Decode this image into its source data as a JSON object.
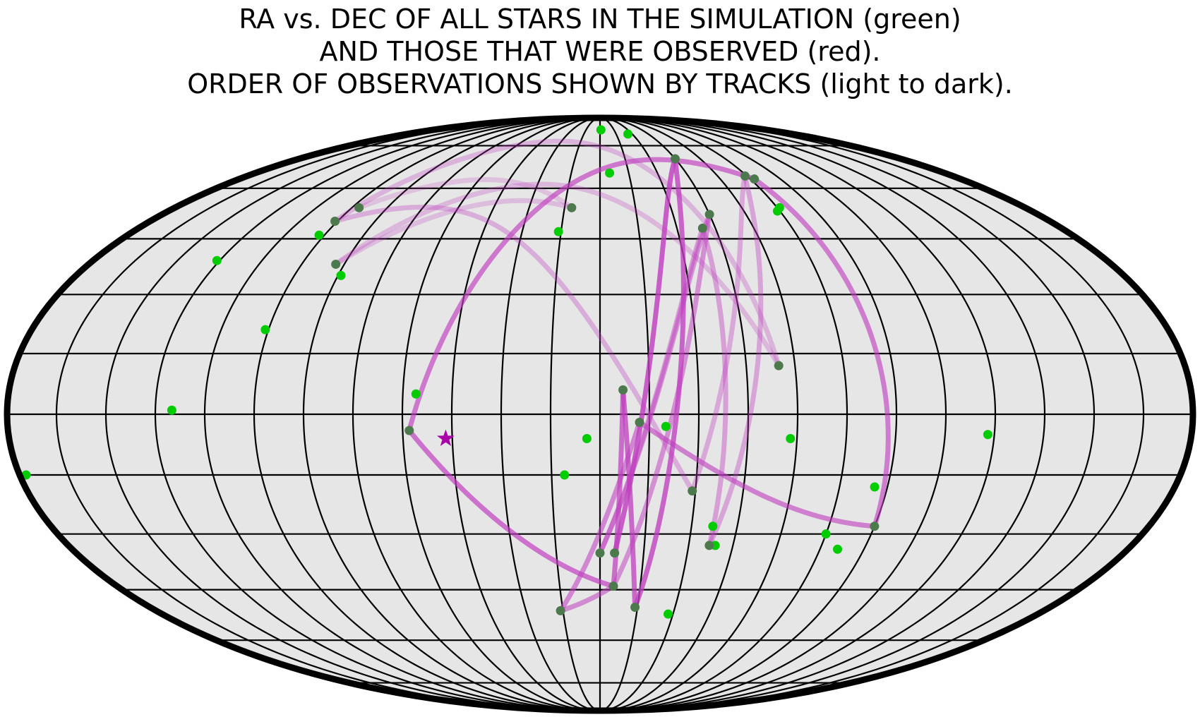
{
  "chart_data": {
    "type": "scatter",
    "projection": "mollweide",
    "title_lines": [
      "RA vs. DEC OF ALL STARS IN THE SIMULATION (green)",
      "AND THOSE THAT WERE OBSERVED (red).",
      "ORDER OF OBSERVATIONS SHOWN BY TRACKS (light to dark)."
    ],
    "grid": true,
    "meridians_deg": [
      -165,
      -150,
      -135,
      -120,
      -105,
      -90,
      -75,
      -60,
      -45,
      -30,
      -15,
      0,
      15,
      30,
      45,
      60,
      75,
      90,
      105,
      120,
      135,
      150,
      165
    ],
    "parallels_deg": [
      -75,
      -60,
      -45,
      -30,
      -15,
      0,
      15,
      30,
      45,
      60,
      75
    ],
    "colors": {
      "background": "#e6e6e6",
      "border": "#000000",
      "grid": "#000000",
      "all_stars": "#00cc00",
      "observed": "#4d7a4d",
      "track": "#c040c0",
      "marker": "#aa00aa"
    },
    "all_stars": [
      {
        "lon": 1,
        "lat": 82
      },
      {
        "lon": 5,
        "lat": 65
      },
      {
        "lon": 26,
        "lat": 80
      },
      {
        "lon": 74,
        "lat": 53
      },
      {
        "lon": 76,
        "lat": 54
      },
      {
        "lon": -16,
        "lat": 47
      },
      {
        "lon": -107,
        "lat": 46
      },
      {
        "lon": -89,
        "lat": 35
      },
      {
        "lon": -136,
        "lat": 39
      },
      {
        "lon": -106,
        "lat": 21
      },
      {
        "lon": -56,
        "lat": 5
      },
      {
        "lon": -130,
        "lat": 1
      },
      {
        "lon": -4,
        "lat": -6
      },
      {
        "lon": -11,
        "lat": -15
      },
      {
        "lon": 58,
        "lat": -6
      },
      {
        "lon": 118,
        "lat": -5
      },
      {
        "lon": -178,
        "lat": -15
      },
      {
        "lon": 20,
        "lat": -3
      },
      {
        "lon": 37,
        "lat": -28
      },
      {
        "lon": 39,
        "lat": -33
      },
      {
        "lon": 86,
        "lat": -18
      },
      {
        "lon": 75,
        "lat": -30
      },
      {
        "lon": 81,
        "lat": -34
      },
      {
        "lon": 28,
        "lat": -52
      }
    ],
    "observed_order": [
      {
        "lon": -102,
        "lat": 54
      },
      {
        "lon": -12,
        "lat": 54
      },
      {
        "lon": -93,
        "lat": 38
      },
      {
        "lon": 55,
        "lat": 12
      },
      {
        "lon": -106,
        "lat": 50
      },
      {
        "lon": 29,
        "lat": -19
      },
      {
        "lon": 74,
        "lat": 64
      },
      {
        "lon": 37,
        "lat": -33
      },
      {
        "lon": 40,
        "lat": 48
      },
      {
        "lon": 0,
        "lat": -35
      },
      {
        "lon": 45,
        "lat": 52
      },
      {
        "lon": 5,
        "lat": -44
      },
      {
        "lon": -16,
        "lat": -51
      },
      {
        "lon": 12,
        "lat": -2
      },
      {
        "lon": 90,
        "lat": -28
      },
      {
        "lon": 77,
        "lat": 63
      },
      {
        "lon": -58,
        "lat": -4
      },
      {
        "lon": 5,
        "lat": -44
      },
      {
        "lon": 7,
        "lat": 6
      },
      {
        "lon": 14,
        "lat": -50
      },
      {
        "lon": 45,
        "lat": 70
      },
      {
        "lon": 5,
        "lat": -35
      }
    ],
    "marker": {
      "symbol": "star",
      "lon": -47,
      "lat": -6
    }
  }
}
